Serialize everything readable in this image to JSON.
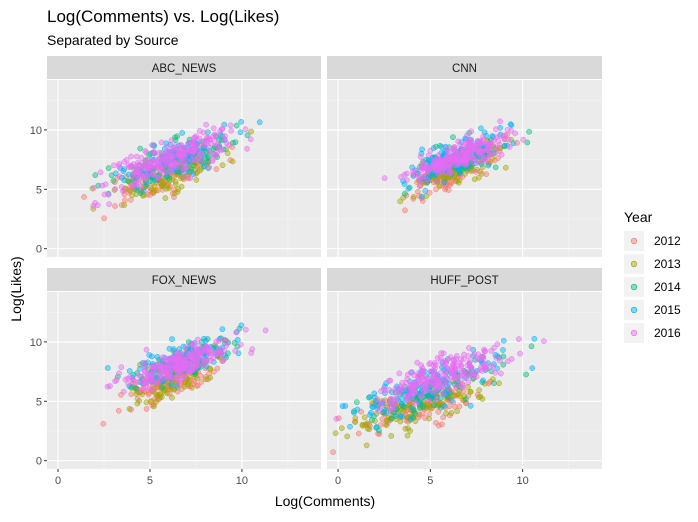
{
  "chart_data": {
    "type": "scatter",
    "title": "Log(Comments) vs. Log(Likes)",
    "subtitle": "Separated by Source",
    "xlabel": "Log(Comments)",
    "ylabel": "Log(Likes)",
    "xlim": [
      -0.6,
      14.3
    ],
    "ylim": [
      -0.7,
      14.2
    ],
    "x_ticks": [
      0,
      5,
      10
    ],
    "y_ticks": [
      0,
      5,
      10
    ],
    "grid": true,
    "legend": {
      "title": "Year",
      "position": "right",
      "entries": [
        "2012",
        "2013",
        "2014",
        "2015",
        "2016"
      ]
    },
    "colors": {
      "2012": "#F8766D",
      "2013": "#A3A500",
      "2014": "#00BF7D",
      "2015": "#00B0F6",
      "2016": "#E76BF3"
    },
    "panels": [
      {
        "name": "ABC_NEWS",
        "clusters": [
          {
            "year": "2012",
            "center": [
              5.6,
              6.0
            ],
            "spread": [
              1.6,
              1.2
            ],
            "corr": 0.75
          },
          {
            "year": "2013",
            "center": [
              5.8,
              6.2
            ],
            "spread": [
              1.6,
              1.2
            ],
            "corr": 0.75
          },
          {
            "year": "2014",
            "center": [
              6.2,
              7.2
            ],
            "spread": [
              1.6,
              1.2
            ],
            "corr": 0.75
          },
          {
            "year": "2015",
            "center": [
              6.3,
              7.6
            ],
            "spread": [
              1.6,
              1.2
            ],
            "corr": 0.75
          },
          {
            "year": "2016",
            "center": [
              6.0,
              7.5
            ],
            "spread": [
              1.8,
              1.3
            ],
            "corr": 0.8
          }
        ]
      },
      {
        "name": "CNN",
        "clusters": [
          {
            "year": "2012",
            "center": [
              6.2,
              6.4
            ],
            "spread": [
              1.2,
              1.0
            ],
            "corr": 0.75
          },
          {
            "year": "2013",
            "center": [
              6.3,
              6.6
            ],
            "spread": [
              1.2,
              1.0
            ],
            "corr": 0.75
          },
          {
            "year": "2014",
            "center": [
              6.5,
              7.5
            ],
            "spread": [
              1.2,
              1.0
            ],
            "corr": 0.75
          },
          {
            "year": "2015",
            "center": [
              6.4,
              7.6
            ],
            "spread": [
              1.4,
              1.2
            ],
            "corr": 0.75
          },
          {
            "year": "2016",
            "center": [
              6.6,
              7.8
            ],
            "spread": [
              1.3,
              1.0
            ],
            "corr": 0.8
          }
        ]
      },
      {
        "name": "FOX_NEWS",
        "clusters": [
          {
            "year": "2012",
            "center": [
              6.3,
              6.6
            ],
            "spread": [
              1.4,
              1.2
            ],
            "corr": 0.75
          },
          {
            "year": "2013",
            "center": [
              6.5,
              7.0
            ],
            "spread": [
              1.3,
              1.1
            ],
            "corr": 0.75
          },
          {
            "year": "2014",
            "center": [
              6.7,
              8.2
            ],
            "spread": [
              1.3,
              1.0
            ],
            "corr": 0.75
          },
          {
            "year": "2015",
            "center": [
              6.5,
              8.4
            ],
            "spread": [
              1.4,
              1.1
            ],
            "corr": 0.75
          },
          {
            "year": "2016",
            "center": [
              6.6,
              8.1
            ],
            "spread": [
              1.5,
              1.1
            ],
            "corr": 0.8
          }
        ]
      },
      {
        "name": "HUFF_POST",
        "clusters": [
          {
            "year": "2012",
            "center": [
              4.6,
              4.6
            ],
            "spread": [
              1.7,
              1.2
            ],
            "corr": 0.75
          },
          {
            "year": "2013",
            "center": [
              4.4,
              4.4
            ],
            "spread": [
              1.9,
              1.2
            ],
            "corr": 0.75
          },
          {
            "year": "2014",
            "center": [
              4.8,
              5.7
            ],
            "spread": [
              1.8,
              1.2
            ],
            "corr": 0.75
          },
          {
            "year": "2015",
            "center": [
              5.0,
              6.3
            ],
            "spread": [
              2.0,
              1.4
            ],
            "corr": 0.75
          },
          {
            "year": "2016",
            "center": [
              5.2,
              6.9
            ],
            "spread": [
              1.9,
              1.4
            ],
            "corr": 0.8
          }
        ]
      }
    ]
  }
}
